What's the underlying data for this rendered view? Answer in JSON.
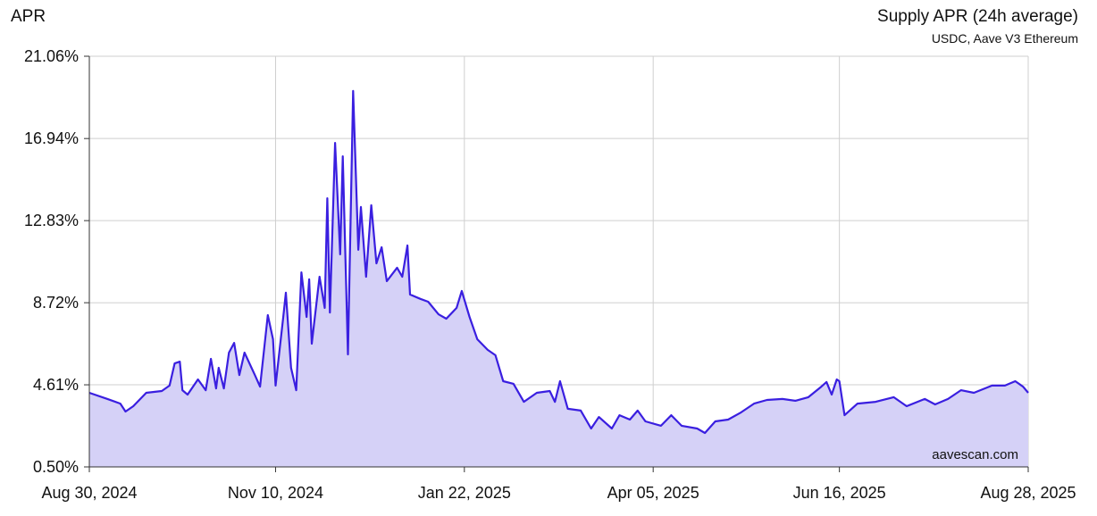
{
  "chart_data": {
    "type": "area",
    "title": "Supply APR (24h average)",
    "subtitle": "USDC, Aave V3 Ethereum",
    "ylabel": "APR",
    "annotation": "aavescan.com",
    "color": "#3a1fe0",
    "fill": "#d5d1f7",
    "grid": true,
    "xlim": [
      "2024-08-30",
      "2025-08-28"
    ],
    "xticks": [
      {
        "value": "2024-08-30",
        "label": "Aug 30, 2024"
      },
      {
        "value": "2024-11-10",
        "label": "Nov 10, 2024"
      },
      {
        "value": "2025-01-22",
        "label": "Jan 22, 2025"
      },
      {
        "value": "2025-04-05",
        "label": "Apr 05, 2025"
      },
      {
        "value": "2025-06-16",
        "label": "Jun 16, 2025"
      },
      {
        "value": "2025-08-28",
        "label": "Aug 28, 2025"
      }
    ],
    "ylim": [
      0.5,
      21.06
    ],
    "yticks": [
      {
        "value": 0.5,
        "label": "0.50%"
      },
      {
        "value": 4.61,
        "label": "4.61%"
      },
      {
        "value": 8.72,
        "label": "8.72%"
      },
      {
        "value": 12.83,
        "label": "12.83%"
      },
      {
        "value": 16.94,
        "label": "16.94%"
      },
      {
        "value": 21.06,
        "label": "21.06%"
      }
    ],
    "x": [
      "2024-08-30",
      "2024-09-06",
      "2024-09-11",
      "2024-09-13",
      "2024-09-16",
      "2024-09-21",
      "2024-09-27",
      "2024-09-30",
      "2024-10-02",
      "2024-10-04",
      "2024-10-05",
      "2024-10-07",
      "2024-10-11",
      "2024-10-14",
      "2024-10-16",
      "2024-10-18",
      "2024-10-19",
      "2024-10-21",
      "2024-10-23",
      "2024-10-25",
      "2024-10-27",
      "2024-10-29",
      "2024-11-02",
      "2024-11-04",
      "2024-11-07",
      "2024-11-09",
      "2024-11-10",
      "2024-11-13",
      "2024-11-14",
      "2024-11-16",
      "2024-11-18",
      "2024-11-20",
      "2024-11-22",
      "2024-11-23",
      "2024-11-24",
      "2024-11-27",
      "2024-11-29",
      "2024-11-30",
      "2024-12-01",
      "2024-12-03",
      "2024-12-05",
      "2024-12-06",
      "2024-12-08",
      "2024-12-10",
      "2024-12-12",
      "2024-12-13",
      "2024-12-15",
      "2024-12-17",
      "2024-12-19",
      "2024-12-21",
      "2024-12-23",
      "2024-12-27",
      "2024-12-29",
      "2024-12-31",
      "2025-01-01",
      "2025-01-05",
      "2025-01-08",
      "2025-01-12",
      "2025-01-15",
      "2025-01-19",
      "2025-01-21",
      "2025-01-24",
      "2025-01-27",
      "2025-01-31",
      "2025-02-03",
      "2025-02-06",
      "2025-02-10",
      "2025-02-14",
      "2025-02-19",
      "2025-02-24",
      "2025-02-26",
      "2025-02-28",
      "2025-03-03",
      "2025-03-08",
      "2025-03-12",
      "2025-03-15",
      "2025-03-20",
      "2025-03-23",
      "2025-03-27",
      "2025-03-30",
      "2025-04-02",
      "2025-04-08",
      "2025-04-12",
      "2025-04-16",
      "2025-04-22",
      "2025-04-25",
      "2025-04-29",
      "2025-05-04",
      "2025-05-09",
      "2025-05-14",
      "2025-05-19",
      "2025-05-25",
      "2025-05-30",
      "2025-06-04",
      "2025-06-09",
      "2025-06-11",
      "2025-06-13",
      "2025-06-15",
      "2025-06-16",
      "2025-06-18",
      "2025-06-23",
      "2025-06-30",
      "2025-07-07",
      "2025-07-12",
      "2025-07-19",
      "2025-07-23",
      "2025-07-28",
      "2025-08-02",
      "2025-08-07",
      "2025-08-14",
      "2025-08-19",
      "2025-08-23",
      "2025-08-26",
      "2025-08-28"
    ],
    "values": [
      4.21,
      3.9,
      3.67,
      3.27,
      3.54,
      4.21,
      4.3,
      4.57,
      5.68,
      5.77,
      4.34,
      4.12,
      4.88,
      4.34,
      5.91,
      4.43,
      5.46,
      4.43,
      6.22,
      6.71,
      5.1,
      6.22,
      5.1,
      4.52,
      8.1,
      6.89,
      4.57,
      8.01,
      9.22,
      5.46,
      4.34,
      10.24,
      8.01,
      9.89,
      6.67,
      10.02,
      8.46,
      13.95,
      8.23,
      16.72,
      11.14,
      16.05,
      6.13,
      19.32,
      11.37,
      13.51,
      10.02,
      13.6,
      10.69,
      11.5,
      9.8,
      10.47,
      10.02,
      11.59,
      9.13,
      8.91,
      8.77,
      8.14,
      7.92,
      8.46,
      9.31,
      8.01,
      6.89,
      6.36,
      6.09,
      4.79,
      4.66,
      3.76,
      4.21,
      4.3,
      3.76,
      4.79,
      3.41,
      3.32,
      2.42,
      3.0,
      2.42,
      3.09,
      2.87,
      3.32,
      2.78,
      2.56,
      3.09,
      2.56,
      2.42,
      2.2,
      2.78,
      2.87,
      3.23,
      3.67,
      3.85,
      3.9,
      3.81,
      3.99,
      4.52,
      4.75,
      4.12,
      4.88,
      4.79,
      3.09,
      3.67,
      3.76,
      3.99,
      3.54,
      3.9,
      3.63,
      3.9,
      4.34,
      4.21,
      4.57,
      4.57,
      4.79,
      4.52,
      4.21
    ]
  }
}
